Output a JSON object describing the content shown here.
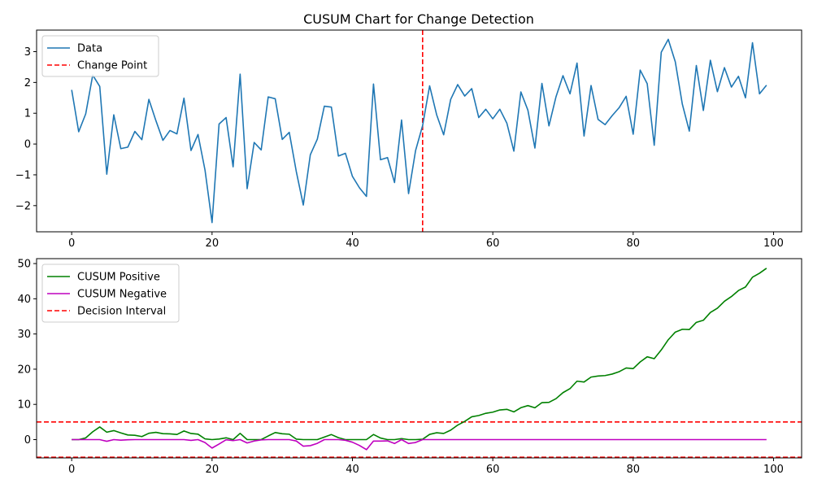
{
  "chart_data": [
    {
      "type": "line",
      "title": "CUSUM Chart for Change Detection",
      "xlim": [
        -5,
        104
      ],
      "ylim": [
        -2.85,
        3.7
      ],
      "xticks": [
        0,
        20,
        40,
        60,
        80,
        100
      ],
      "xtick_labels": [
        "0",
        "20",
        "40",
        "60",
        "80",
        "100"
      ],
      "yticks": [
        -2,
        -1,
        0,
        1,
        2,
        3
      ],
      "ytick_labels": [
        "−2",
        "−1",
        "0",
        "1",
        "2",
        "3"
      ],
      "legend_position": "upper-left",
      "series": [
        {
          "name": "Data",
          "color": "#1f77b4",
          "style": "solid",
          "x_start": 0,
          "values": [
            1.76,
            0.4,
            0.98,
            2.24,
            1.87,
            -0.98,
            0.95,
            -0.15,
            -0.1,
            0.41,
            0.14,
            1.45,
            0.76,
            0.12,
            0.44,
            0.33,
            1.49,
            -0.21,
            0.31,
            -0.85,
            -2.55,
            0.65,
            0.86,
            -0.74,
            2.27,
            -1.45,
            0.05,
            -0.19,
            1.53,
            1.47,
            0.15,
            0.38,
            -0.89,
            -1.98,
            -0.35,
            0.16,
            1.23,
            1.2,
            -0.39,
            -0.3,
            -1.05,
            -1.42,
            -1.7,
            1.95,
            -0.51,
            -0.44,
            -1.25,
            0.78,
            -1.61,
            -0.21,
            0.6,
            1.89,
            0.95,
            0.3,
            1.45,
            1.93,
            1.56,
            1.8,
            0.86,
            1.13,
            0.82,
            1.13,
            0.68,
            -0.23,
            1.69,
            1.1,
            -0.13,
            1.97,
            0.59,
            1.53,
            2.22,
            1.63,
            2.63,
            0.26,
            1.9,
            0.8,
            0.63,
            0.92,
            1.18,
            1.55,
            0.32,
            2.4,
            1.96,
            -0.04,
            2.98,
            3.4,
            2.67,
            1.3,
            0.42,
            2.55,
            1.09,
            2.72,
            1.7,
            2.48,
            1.85,
            2.2,
            1.5,
            3.29,
            1.63,
            1.91
          ]
        }
      ],
      "reference_lines": [
        {
          "name": "Change Point",
          "orientation": "vertical",
          "x": 50,
          "color": "#ff0000",
          "style": "dashed"
        }
      ]
    },
    {
      "type": "line",
      "title": "",
      "xlim": [
        -5,
        104
      ],
      "ylim": [
        -5.2,
        51.4
      ],
      "xticks": [
        0,
        20,
        40,
        60,
        80,
        100
      ],
      "xtick_labels": [
        "0",
        "20",
        "40",
        "60",
        "80",
        "100"
      ],
      "yticks": [
        0,
        10,
        20,
        30,
        40,
        50
      ],
      "ytick_labels": [
        "0",
        "10",
        "20",
        "30",
        "40",
        "50"
      ],
      "legend_position": "upper-left",
      "series": [
        {
          "name": "CUSUM Positive",
          "color": "#008000",
          "style": "solid",
          "x_start": 0,
          "values": [
            0,
            0,
            0.48,
            2.22,
            3.59,
            2.11,
            2.56,
            1.91,
            1.31,
            1.22,
            0.86,
            1.81,
            2.07,
            1.69,
            1.63,
            1.46,
            2.45,
            1.74,
            1.55,
            0.2,
            0,
            0.15,
            0.51,
            0,
            1.77,
            0,
            0,
            0,
            1.03,
            2.0,
            1.65,
            1.53,
            0.14,
            0,
            0,
            0,
            0.73,
            1.43,
            0.54,
            0,
            0,
            0,
            0,
            1.45,
            0.44,
            0,
            0,
            0.28,
            0,
            0,
            0.1,
            1.49,
            1.94,
            1.74,
            2.69,
            4.12,
            5.18,
            6.48,
            6.84,
            7.47,
            7.79,
            8.42,
            8.6,
            7.87,
            9.06,
            9.66,
            9.03,
            10.5,
            10.59,
            11.62,
            13.34,
            14.47,
            16.6,
            16.36,
            17.76,
            18.06,
            18.19,
            18.61,
            19.29,
            20.34,
            20.16,
            22.06,
            23.52,
            22.98,
            25.46,
            28.36,
            30.53,
            31.33,
            31.25,
            33.3,
            33.89,
            36.11,
            37.31,
            39.29,
            40.64,
            42.34,
            43.34,
            46.13,
            47.26,
            48.67
          ]
        },
        {
          "name": "CUSUM Negative",
          "color": "#bf00bf",
          "style": "solid",
          "x_start": 0,
          "values": [
            0,
            0,
            0,
            0,
            0,
            -0.48,
            0,
            -0.15,
            -0.05,
            0,
            0,
            0,
            0,
            0,
            0,
            0,
            0,
            -0.21,
            0,
            -0.85,
            -2.4,
            -1.25,
            -0.05,
            -0.29,
            0,
            -0.95,
            -0.4,
            -0.09,
            0,
            0,
            0,
            0,
            -0.39,
            -1.87,
            -1.72,
            -1.06,
            0,
            0,
            0,
            -0.19,
            -0.74,
            -1.66,
            -2.86,
            -0.41,
            -0.42,
            -0.36,
            -1.11,
            0,
            -1.11,
            -0.82,
            0,
            0,
            0,
            0,
            0,
            0,
            0,
            0,
            0,
            0,
            0,
            0,
            0,
            0,
            0,
            0,
            0,
            0,
            0,
            0,
            0,
            0,
            0,
            0,
            0,
            0,
            0,
            0,
            0,
            0,
            0,
            0,
            0,
            0,
            0,
            0,
            0,
            0,
            0,
            0,
            0,
            0,
            0,
            0,
            0,
            0,
            0,
            0,
            0,
            0
          ]
        }
      ],
      "reference_lines": [
        {
          "name": "Decision Interval",
          "orientation": "horizontal",
          "y": 5,
          "color": "#ff0000",
          "style": "dashed"
        },
        {
          "name": "",
          "orientation": "horizontal",
          "y": -5,
          "color": "#ff0000",
          "style": "dashed"
        }
      ]
    }
  ]
}
